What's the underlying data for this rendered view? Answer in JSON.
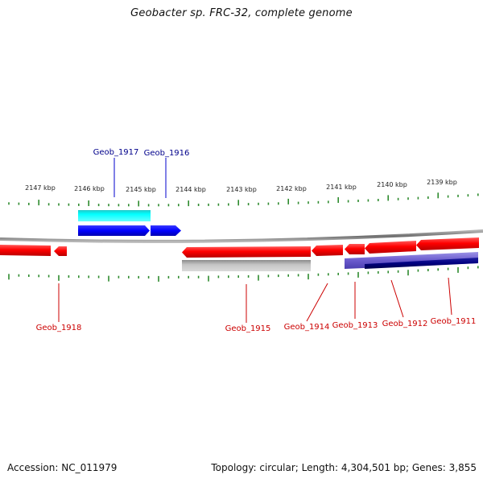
{
  "title": "Geobacter sp. FRC-32, complete genome",
  "footer": {
    "accession": "Accession: NC_011979",
    "summary": "Topology: circular; Length: 4,304,501 bp; Genes: 3,855"
  },
  "colors": {
    "background": "#ffffff",
    "backbone": "#8c8c8c",
    "tick": "#2e8b2e",
    "gene_red": "#ff0000",
    "gene_blue": "#0000ff",
    "gene_cyan": "#00e5e5",
    "gene_gray": "#a8a8a8",
    "gene_lavender": "#6a5acd",
    "gene_navy": "#000080",
    "label_blue": "#00008b",
    "label_red": "#cc0000"
  },
  "scale_labels": [
    "2147 kbp",
    "2146 kbp",
    "2145 kbp",
    "2144 kbp",
    "2143 kbp",
    "2142 kbp",
    "2141 kbp",
    "2140 kbp",
    "2139 kbp"
  ],
  "genes_top": [
    {
      "name": "Geob_1917",
      "color": "blue"
    },
    {
      "name": "Geob_1916",
      "color": "blue"
    }
  ],
  "genes_bottom": [
    {
      "name": "Geob_1918"
    },
    {
      "name": "Geob_1915"
    },
    {
      "name": "Geob_1914"
    },
    {
      "name": "Geob_1913"
    },
    {
      "name": "Geob_1912"
    },
    {
      "name": "Geob_1911"
    }
  ]
}
